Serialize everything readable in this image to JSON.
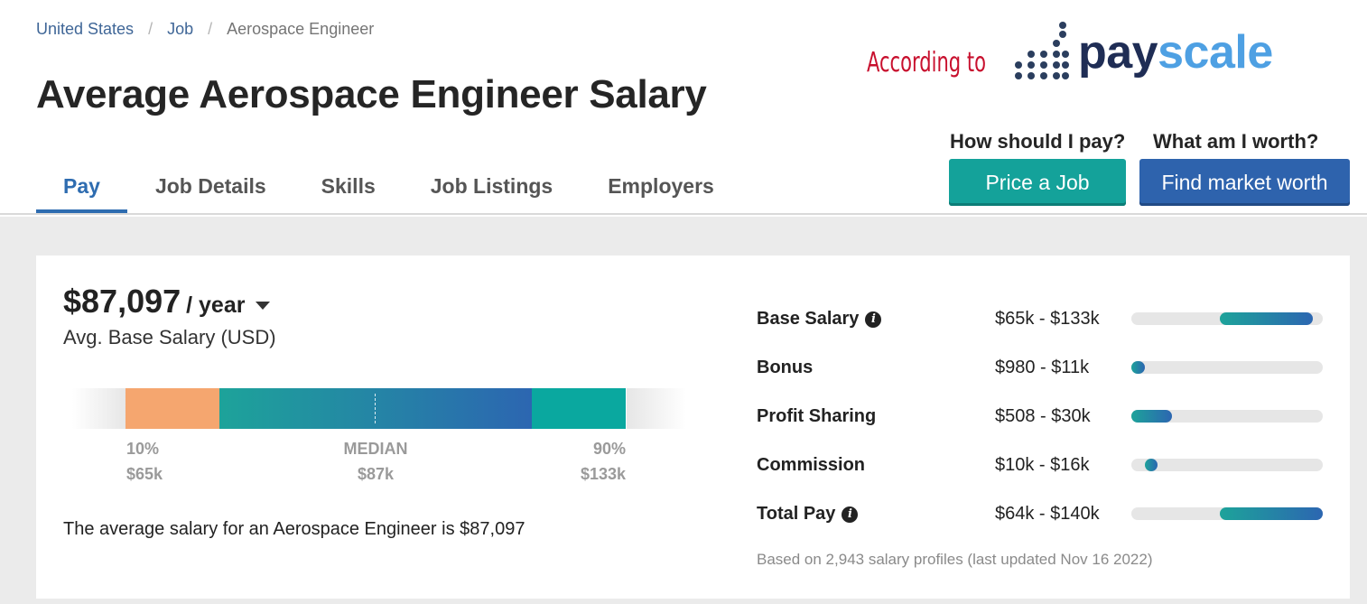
{
  "breadcrumb": {
    "items": [
      "United States",
      "Job"
    ],
    "separator": "/",
    "current": "Aerospace Engineer"
  },
  "page_title": "Average Aerospace Engineer Salary",
  "tabs": [
    "Pay",
    "Job Details",
    "Skills",
    "Job Listings",
    "Employers"
  ],
  "active_tab": "Pay",
  "overlay": {
    "according_text": "According to",
    "logo_text_pay": "pay",
    "logo_text_scale": "scale",
    "accent_color": "#c8102e"
  },
  "cta": {
    "price_question": "How should I pay?",
    "price_button": "Price a Job",
    "worth_question": "What am I worth?",
    "worth_button": "Find market worth"
  },
  "salary": {
    "amount": "$87,097",
    "unit": "/ year",
    "subtitle": "Avg. Base Salary (USD)",
    "percentiles": {
      "p10_label": "10%",
      "p10_value": "$65k",
      "median_label": "MEDIAN",
      "median_value": "$87k",
      "p90_label": "90%",
      "p90_value": "$133k"
    },
    "average_text": "The average salary for an Aerospace Engineer is $87,097"
  },
  "compensation": [
    {
      "name": "Base Salary",
      "range": "$65k - $133k",
      "info": true,
      "fill_start": 0.46,
      "fill_end": 0.95
    },
    {
      "name": "Bonus",
      "range": "$980 - $11k",
      "info": false,
      "fill_start": 0.0,
      "fill_end": 0.07
    },
    {
      "name": "Profit Sharing",
      "range": "$508 - $30k",
      "info": false,
      "fill_start": 0.0,
      "fill_end": 0.21
    },
    {
      "name": "Commission",
      "range": "$10k - $16k",
      "info": false,
      "fill_start": 0.07,
      "fill_end": 0.12
    },
    {
      "name": "Total Pay",
      "range": "$64k - $140k",
      "info": true,
      "fill_start": 0.46,
      "fill_end": 1.0
    }
  ],
  "footnote": "Based on 2,943 salary profiles (last updated Nov 16 2022)",
  "colors": {
    "link": "#3f6697",
    "active_tab": "#2e6cb0",
    "teal_button": "#14a29a",
    "blue_button": "#2e63ad",
    "bar_low": "#f5a66f",
    "bar_high": "#0aa89f"
  }
}
